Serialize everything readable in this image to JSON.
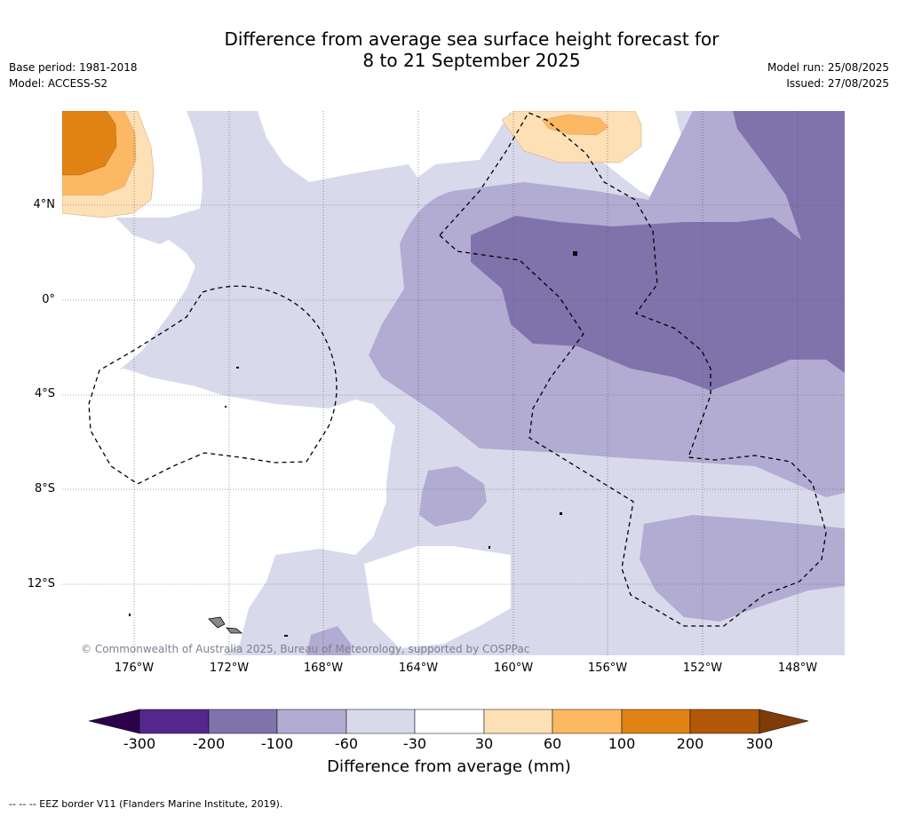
{
  "header": {
    "title_line1": "Difference from average sea surface height forecast for",
    "title_line2": "8 to 21 September 2025",
    "base_period": "Base period: 1981-2018",
    "model": "Model: ACCESS-S2",
    "model_run": "Model run: 25/08/2025",
    "issued": "Issued: 27/08/2025"
  },
  "map": {
    "lat_labels": [
      "4°N",
      "0°",
      "4°S",
      "8°S",
      "12°S"
    ],
    "lon_labels": [
      "176°W",
      "172°W",
      "168°W",
      "164°W",
      "160°W",
      "156°W",
      "152°W",
      "148°W"
    ],
    "copyright": "© Commonwealth of Australia 2025, Bureau of Meteorology, supported by COSPPac",
    "colors": {
      "neg_300_200": "#54278f",
      "neg_200_100": "#8073ac",
      "neg_100_60": "#b2abd2",
      "neg_60_30": "#d8daeb",
      "neutral": "#ffffff",
      "pos_30_60": "#fee0b6",
      "pos_60_100": "#fdb863",
      "pos_100_200": "#e08214",
      "pos_200_300": "#b35806",
      "below_min": "#2d004b",
      "above_max": "#7f3b08"
    }
  },
  "colorbar": {
    "ticks": [
      "-300",
      "-200",
      "-100",
      "-60",
      "-30",
      "30",
      "60",
      "100",
      "200",
      "300"
    ],
    "label": "Difference from average (mm)"
  },
  "footer": {
    "eez_note": "-- -- -- EEZ border V11 (Flanders Marine Institute, 2019)."
  }
}
